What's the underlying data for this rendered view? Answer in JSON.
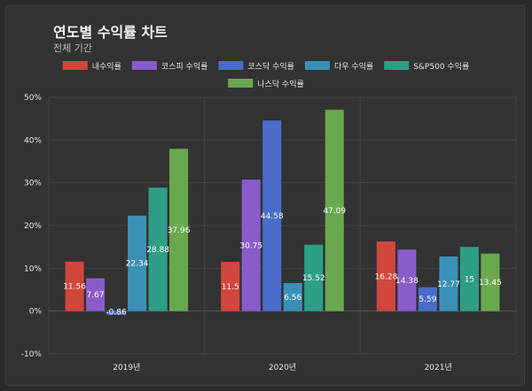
{
  "title": "연도별 수익률 차트",
  "subtitle": "전체 기간",
  "chart_data": {
    "type": "bar",
    "categories": [
      "2019년",
      "2020년",
      "2021년"
    ],
    "series": [
      {
        "name": "내수익률",
        "color": "#d2473d",
        "values": [
          11.56,
          11.5,
          16.28
        ]
      },
      {
        "name": "코스피 수익률",
        "color": "#8a5cc9",
        "values": [
          7.67,
          30.75,
          14.38
        ]
      },
      {
        "name": "코스닥 수익률",
        "color": "#4a6cc9",
        "values": [
          -0.86,
          44.58,
          5.59
        ]
      },
      {
        "name": "다우 수익률",
        "color": "#3a91b8",
        "values": [
          22.34,
          6.56,
          12.77
        ]
      },
      {
        "name": "S&P500 수익률",
        "color": "#2f9e86",
        "values": [
          28.88,
          15.52,
          15
        ]
      },
      {
        "name": "나스닥 수익률",
        "color": "#6aa84f",
        "values": [
          37.96,
          47.09,
          13.45
        ]
      }
    ],
    "ylim": [
      -10,
      50
    ],
    "yticks": [
      "-10%",
      "0%",
      "10%",
      "20%",
      "30%",
      "40%",
      "50%"
    ],
    "ytick_values": [
      -10,
      0,
      10,
      20,
      30,
      40,
      50
    ],
    "grid": true,
    "legend": "top"
  }
}
